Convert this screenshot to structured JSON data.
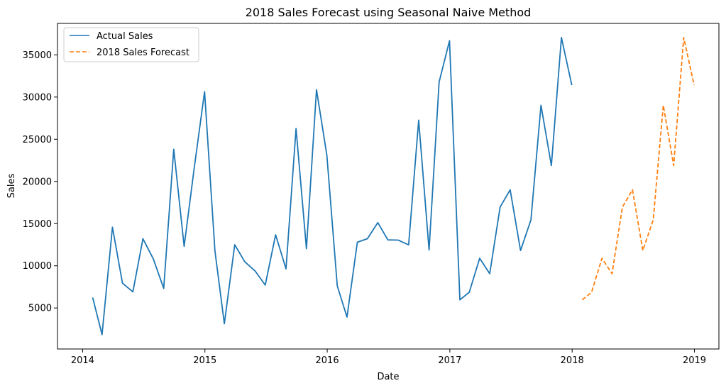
{
  "chart_data": {
    "type": "line",
    "title": "2018 Sales Forecast using Seasonal Naive Method",
    "xlabel": "Date",
    "ylabel": "Sales",
    "xlim": [
      "2013-10-18",
      "2019-03-15"
    ],
    "ylim": [
      140,
      38730
    ],
    "x_ticks": [
      {
        "date": "2014-01-01",
        "label": "2014"
      },
      {
        "date": "2015-01-01",
        "label": "2015"
      },
      {
        "date": "2016-01-01",
        "label": "2016"
      },
      {
        "date": "2017-01-01",
        "label": "2017"
      },
      {
        "date": "2018-01-01",
        "label": "2018"
      },
      {
        "date": "2019-01-01",
        "label": "2019"
      }
    ],
    "y_ticks": [
      5000,
      10000,
      15000,
      20000,
      25000,
      30000,
      35000
    ],
    "grid": false,
    "legend_position": "top-left",
    "series": [
      {
        "name": "Actual Sales",
        "color": "#1f77b4",
        "style": "solid",
        "points": [
          [
            "2014-01-31",
            6242
          ],
          [
            "2014-02-28",
            1840
          ],
          [
            "2014-03-31",
            14574
          ],
          [
            "2014-04-30",
            7945
          ],
          [
            "2014-05-31",
            6912
          ],
          [
            "2014-06-30",
            13206
          ],
          [
            "2014-07-31",
            10821
          ],
          [
            "2014-08-31",
            7320
          ],
          [
            "2014-09-30",
            23816
          ],
          [
            "2014-10-31",
            12304
          ],
          [
            "2014-11-30",
            21564
          ],
          [
            "2014-12-31",
            30645
          ],
          [
            "2015-01-31",
            11740
          ],
          [
            "2015-02-28",
            3134
          ],
          [
            "2015-03-31",
            12499
          ],
          [
            "2015-04-30",
            10476
          ],
          [
            "2015-05-31",
            9375
          ],
          [
            "2015-06-30",
            7714
          ],
          [
            "2015-07-31",
            13674
          ],
          [
            "2015-08-31",
            9638
          ],
          [
            "2015-09-30",
            26273
          ],
          [
            "2015-10-31",
            12026
          ],
          [
            "2015-11-30",
            30881
          ],
          [
            "2015-12-31",
            23086
          ],
          [
            "2016-01-31",
            7622
          ],
          [
            "2016-02-29",
            3926
          ],
          [
            "2016-03-31",
            12801
          ],
          [
            "2016-04-30",
            13212
          ],
          [
            "2016-05-31",
            15119
          ],
          [
            "2016-06-30",
            13070
          ],
          [
            "2016-07-31",
            13044
          ],
          [
            "2016-08-31",
            12484
          ],
          [
            "2016-09-30",
            27262
          ],
          [
            "2016-10-31",
            11872
          ],
          [
            "2016-11-30",
            31783
          ],
          [
            "2016-12-31",
            36678
          ],
          [
            "2017-01-31",
            5965
          ],
          [
            "2017-02-28",
            6866
          ],
          [
            "2017-03-31",
            10894
          ],
          [
            "2017-04-30",
            9065
          ],
          [
            "2017-05-31",
            16957
          ],
          [
            "2017-06-30",
            19009
          ],
          [
            "2017-07-31",
            11813
          ],
          [
            "2017-08-31",
            15441
          ],
          [
            "2017-09-30",
            29028
          ],
          [
            "2017-10-31",
            21884
          ],
          [
            "2017-11-30",
            37056
          ],
          [
            "2017-12-31",
            31407
          ]
        ]
      },
      {
        "name": "2018 Sales Forecast",
        "color": "#ff7f0e",
        "style": "dashed",
        "points": [
          [
            "2018-01-31",
            5965
          ],
          [
            "2018-02-28",
            6866
          ],
          [
            "2018-03-31",
            10894
          ],
          [
            "2018-04-30",
            9065
          ],
          [
            "2018-05-31",
            16957
          ],
          [
            "2018-06-30",
            19009
          ],
          [
            "2018-07-31",
            11813
          ],
          [
            "2018-08-31",
            15441
          ],
          [
            "2018-09-30",
            29028
          ],
          [
            "2018-10-31",
            21884
          ],
          [
            "2018-11-30",
            37056
          ],
          [
            "2018-12-31",
            31407
          ]
        ]
      }
    ]
  }
}
